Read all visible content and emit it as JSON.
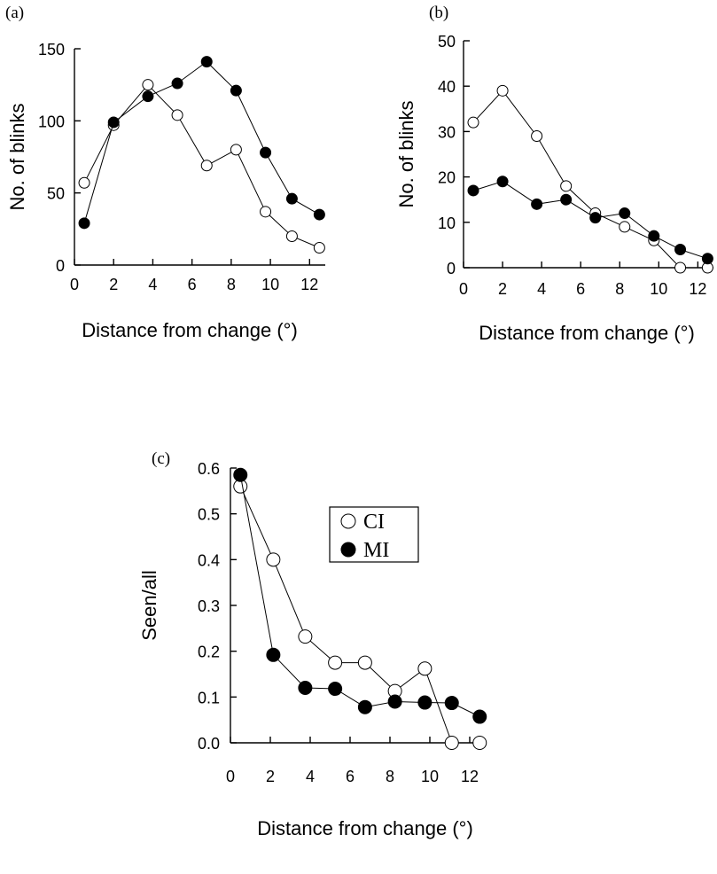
{
  "chart_data": [
    {
      "panel_label": "(a)",
      "type": "line",
      "xlabel": "Distance from change (°)",
      "ylabel": "No. of blinks",
      "xlim": [
        0,
        12.8
      ],
      "ylim": [
        0,
        150
      ],
      "xticks": [
        0,
        2,
        4,
        6,
        8,
        10,
        12
      ],
      "yticks": [
        0,
        50,
        100,
        150
      ],
      "x": [
        0.5,
        2,
        3.75,
        5.25,
        6.75,
        8.25,
        9.75,
        11.1,
        12.5
      ],
      "series": [
        {
          "marker": "open",
          "values": [
            57,
            97,
            125,
            104,
            69,
            80,
            37,
            20,
            12
          ]
        },
        {
          "marker": "filled",
          "values": [
            29,
            99,
            117,
            126,
            141,
            121,
            78,
            46,
            35
          ]
        }
      ]
    },
    {
      "panel_label": "(b)",
      "type": "line",
      "xlabel": "Distance from change (°)",
      "ylabel": "No. of blinks",
      "xlim": [
        0,
        12.8
      ],
      "ylim": [
        0,
        50
      ],
      "xticks": [
        0,
        2,
        4,
        6,
        8,
        10,
        12
      ],
      "yticks": [
        0,
        10,
        20,
        30,
        40,
        50
      ],
      "x": [
        0.5,
        2,
        3.75,
        5.25,
        6.75,
        8.25,
        9.75,
        11.1,
        12.5
      ],
      "series": [
        {
          "marker": "open",
          "values": [
            32,
            39,
            29,
            18,
            12,
            9,
            6,
            0,
            0
          ]
        },
        {
          "marker": "filled",
          "values": [
            17,
            19,
            14,
            15,
            11,
            12,
            7,
            4,
            2
          ]
        }
      ]
    },
    {
      "panel_label": "(c)",
      "type": "line",
      "xlabel": "Distance from change (°)",
      "ylabel": "Seen/all",
      "xlim": [
        0,
        12.8
      ],
      "ylim": [
        0,
        0.6
      ],
      "xticks": [
        0,
        2,
        4,
        6,
        8,
        10,
        12
      ],
      "yticks": [
        0.0,
        0.1,
        0.2,
        0.3,
        0.4,
        0.5,
        0.6
      ],
      "yticks_text": [
        "0.0",
        "0.1",
        "0.2",
        "0.3",
        "0.4",
        "0.5",
        "0.6"
      ],
      "legend_position": "top-right",
      "x": [
        0.5,
        2.15,
        3.75,
        5.25,
        6.75,
        8.25,
        9.75,
        11.1,
        12.5
      ],
      "series": [
        {
          "name": "CI",
          "marker": "open",
          "values": [
            0.56,
            0.4,
            0.232,
            0.175,
            0.175,
            0.113,
            0.162,
            0.0,
            0.0
          ]
        },
        {
          "name": "MI",
          "marker": "filled",
          "values": [
            0.585,
            0.192,
            0.12,
            0.118,
            0.078,
            0.09,
            0.088,
            0.087,
            0.057
          ]
        }
      ]
    }
  ]
}
